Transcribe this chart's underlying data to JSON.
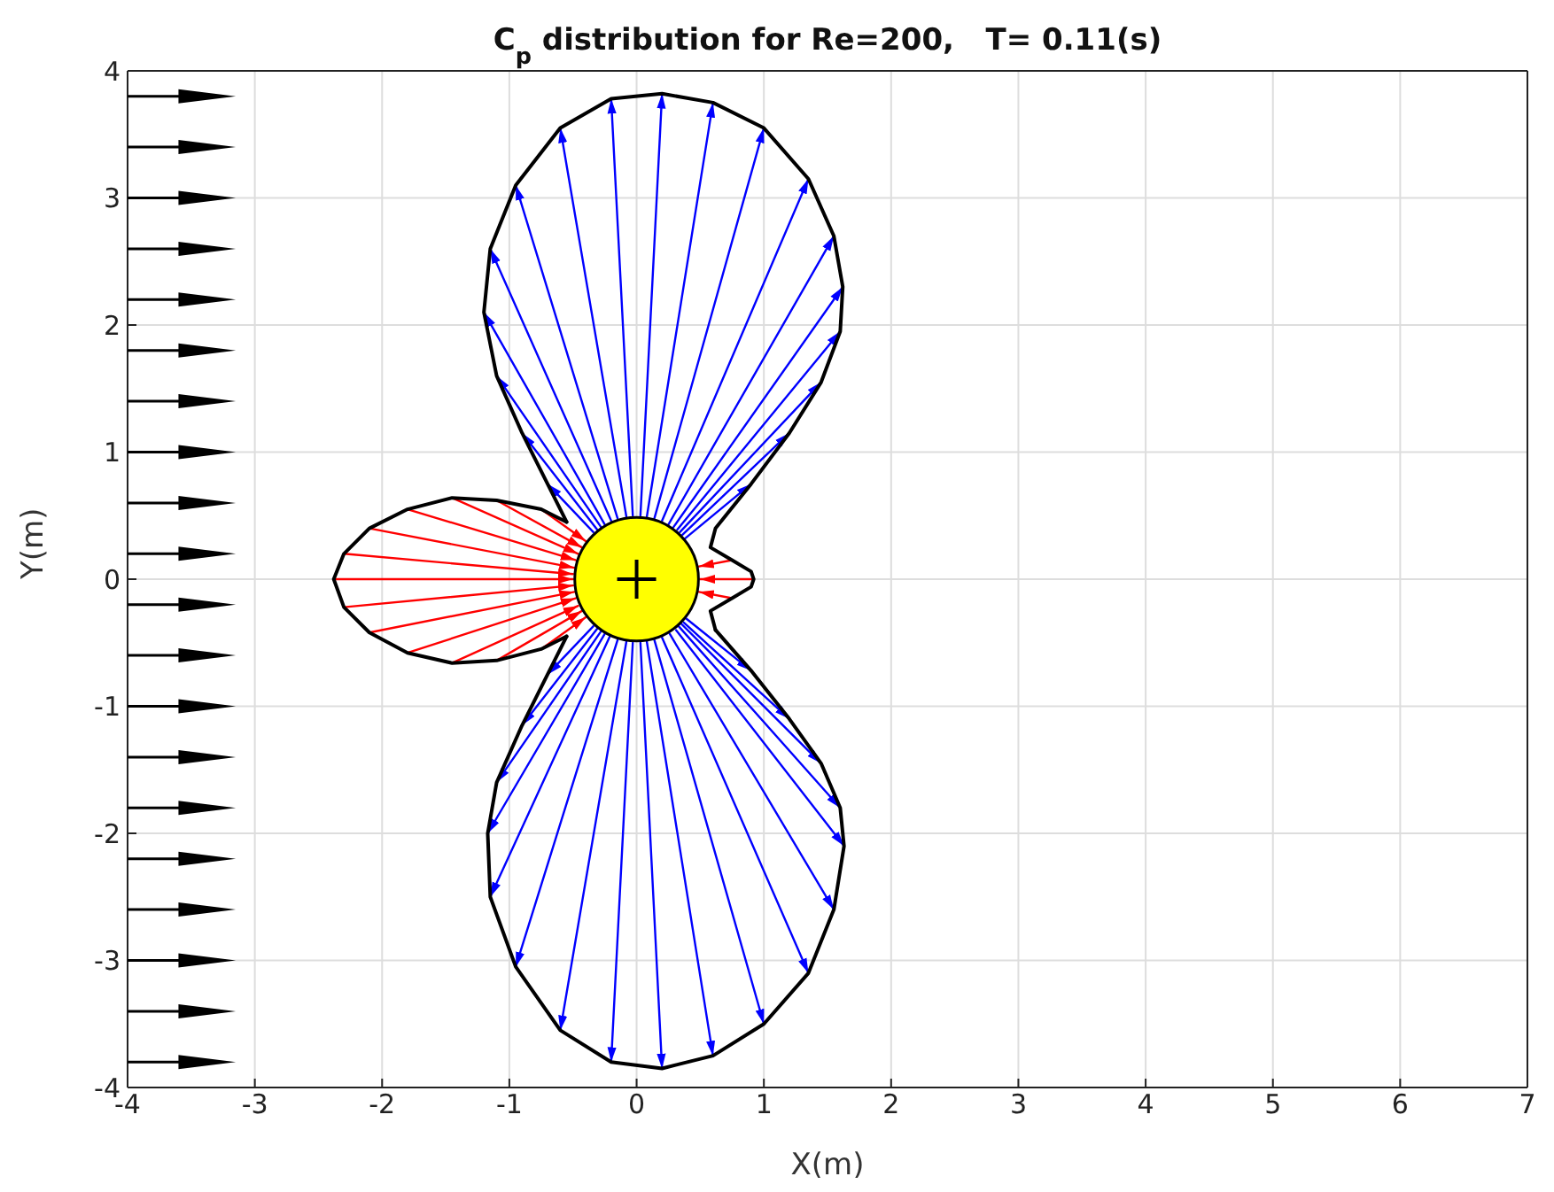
{
  "chart_data": {
    "type": "line",
    "title": "C$_{p}$ distribution for Re=200,   T= 0.11(s)",
    "xlabel": "X(m)",
    "ylabel": "Y(m)",
    "xlim": [
      -4,
      7
    ],
    "xticks": [
      -4,
      -3,
      -2,
      -1,
      0,
      1,
      2,
      3,
      4,
      5,
      6,
      7
    ],
    "ylim": [
      -4,
      4
    ],
    "yticks": [
      -4,
      -3,
      -2,
      -1,
      0,
      1,
      2,
      3,
      4
    ],
    "grid": true,
    "line_style": "solid",
    "marker": "none",
    "series": [
      {
        "color": "#0000ff",
        "x": [
          0.38,
          0.9
        ],
        "values": [
          0.32,
          0.75
        ]
      },
      {
        "color": "#0000ff",
        "x": [
          0.36,
          1.2
        ],
        "values": [
          0.35,
          1.15
        ]
      },
      {
        "color": "#0000ff",
        "x": [
          0.34,
          1.45
        ],
        "values": [
          0.37,
          1.55
        ]
      },
      {
        "color": "#0000ff",
        "x": [
          0.32,
          1.6
        ],
        "values": [
          0.39,
          1.95
        ]
      },
      {
        "color": "#0000ff",
        "x": [
          0.29,
          1.62
        ],
        "values": [
          0.41,
          2.3
        ]
      },
      {
        "color": "#0000ff",
        "x": [
          0.25,
          1.55
        ],
        "values": [
          0.43,
          2.7
        ]
      },
      {
        "color": "#0000ff",
        "x": [
          0.2,
          1.35
        ],
        "values": [
          0.46,
          3.15
        ]
      },
      {
        "color": "#0000ff",
        "x": [
          0.14,
          1.0
        ],
        "values": [
          0.48,
          3.55
        ]
      },
      {
        "color": "#0000ff",
        "x": [
          0.08,
          0.6
        ],
        "values": [
          0.49,
          3.75
        ]
      },
      {
        "color": "#0000ff",
        "x": [
          0.03,
          0.2
        ],
        "values": [
          0.5,
          3.82
        ]
      },
      {
        "color": "#0000ff",
        "x": [
          -0.03,
          -0.2
        ],
        "values": [
          0.5,
          3.78
        ]
      },
      {
        "color": "#0000ff",
        "x": [
          -0.08,
          -0.6
        ],
        "values": [
          0.49,
          3.55
        ]
      },
      {
        "color": "#0000ff",
        "x": [
          -0.15,
          -0.95
        ],
        "values": [
          0.48,
          3.1
        ]
      },
      {
        "color": "#0000ff",
        "x": [
          -0.2,
          -1.15
        ],
        "values": [
          0.46,
          2.6
        ]
      },
      {
        "color": "#0000ff",
        "x": [
          -0.25,
          -1.2
        ],
        "values": [
          0.43,
          2.1
        ]
      },
      {
        "color": "#0000ff",
        "x": [
          -0.28,
          -1.1
        ],
        "values": [
          0.41,
          1.6
        ]
      },
      {
        "color": "#0000ff",
        "x": [
          -0.31,
          -0.9
        ],
        "values": [
          0.39,
          1.15
        ]
      },
      {
        "color": "#0000ff",
        "x": [
          -0.34,
          -0.7
        ],
        "values": [
          0.37,
          0.75
        ]
      },
      {
        "color": "#0000ff",
        "x": [
          -0.34,
          -0.7
        ],
        "values": [
          -0.37,
          -0.75
        ]
      },
      {
        "color": "#0000ff",
        "x": [
          -0.31,
          -0.9
        ],
        "values": [
          -0.39,
          -1.15
        ]
      },
      {
        "color": "#0000ff",
        "x": [
          -0.28,
          -1.1
        ],
        "values": [
          -0.41,
          -1.6
        ]
      },
      {
        "color": "#0000ff",
        "x": [
          -0.25,
          -1.17
        ],
        "values": [
          -0.43,
          -2.0
        ]
      },
      {
        "color": "#0000ff",
        "x": [
          -0.21,
          -1.15
        ],
        "values": [
          -0.45,
          -2.5
        ]
      },
      {
        "color": "#0000ff",
        "x": [
          -0.15,
          -0.95
        ],
        "values": [
          -0.48,
          -3.05
        ]
      },
      {
        "color": "#0000ff",
        "x": [
          -0.08,
          -0.6
        ],
        "values": [
          -0.49,
          -3.55
        ]
      },
      {
        "color": "#0000ff",
        "x": [
          -0.03,
          -0.2
        ],
        "values": [
          -0.5,
          -3.8
        ]
      },
      {
        "color": "#0000ff",
        "x": [
          0.03,
          0.2
        ],
        "values": [
          -0.5,
          -3.85
        ]
      },
      {
        "color": "#0000ff",
        "x": [
          0.08,
          0.6
        ],
        "values": [
          -0.49,
          -3.75
        ]
      },
      {
        "color": "#0000ff",
        "x": [
          0.14,
          1.0
        ],
        "values": [
          -0.48,
          -3.5
        ]
      },
      {
        "color": "#0000ff",
        "x": [
          0.2,
          1.35
        ],
        "values": [
          -0.46,
          -3.1
        ]
      },
      {
        "color": "#0000ff",
        "x": [
          0.26,
          1.55
        ],
        "values": [
          -0.43,
          -2.6
        ]
      },
      {
        "color": "#0000ff",
        "x": [
          0.31,
          1.63
        ],
        "values": [
          -0.4,
          -2.1
        ]
      },
      {
        "color": "#0000ff",
        "x": [
          0.33,
          1.6
        ],
        "values": [
          -0.37,
          -1.8
        ]
      },
      {
        "color": "#0000ff",
        "x": [
          0.35,
          1.45
        ],
        "values": [
          -0.35,
          -1.45
        ]
      },
      {
        "color": "#0000ff",
        "x": [
          0.37,
          1.2
        ],
        "values": [
          -0.34,
          -1.1
        ]
      },
      {
        "color": "#0000ff",
        "x": [
          0.39,
          0.9
        ],
        "values": [
          -0.31,
          -0.72
        ]
      },
      {
        "color": "#ff0000",
        "x": [
          -0.75,
          -0.4
        ],
        "values": [
          0.55,
          0.3
        ]
      },
      {
        "color": "#ff0000",
        "x": [
          -1.1,
          -0.43
        ],
        "values": [
          0.62,
          0.25
        ]
      },
      {
        "color": "#ff0000",
        "x": [
          -1.45,
          -0.46
        ],
        "values": [
          0.64,
          0.2
        ]
      },
      {
        "color": "#ff0000",
        "x": [
          -1.8,
          -0.48
        ],
        "values": [
          0.55,
          0.15
        ]
      },
      {
        "color": "#ff0000",
        "x": [
          -2.1,
          -0.49
        ],
        "values": [
          0.4,
          0.09
        ]
      },
      {
        "color": "#ff0000",
        "x": [
          -2.3,
          -0.5
        ],
        "values": [
          0.2,
          0.04
        ]
      },
      {
        "color": "#ff0000",
        "x": [
          -2.38,
          -0.5
        ],
        "values": [
          0,
          0
        ]
      },
      {
        "color": "#ff0000",
        "x": [
          -2.3,
          -0.5
        ],
        "values": [
          -0.22,
          -0.05
        ]
      },
      {
        "color": "#ff0000",
        "x": [
          -2.1,
          -0.49
        ],
        "values": [
          -0.42,
          -0.1
        ]
      },
      {
        "color": "#ff0000",
        "x": [
          -1.8,
          -0.48
        ],
        "values": [
          -0.58,
          -0.15
        ]
      },
      {
        "color": "#ff0000",
        "x": [
          -1.45,
          -0.46
        ],
        "values": [
          -0.66,
          -0.21
        ]
      },
      {
        "color": "#ff0000",
        "x": [
          -1.1,
          -0.43
        ],
        "values": [
          -0.64,
          -0.25
        ]
      },
      {
        "color": "#ff0000",
        "x": [
          -0.75,
          -0.4
        ],
        "values": [
          -0.55,
          -0.3
        ]
      },
      {
        "color": "#ff0000",
        "x": [
          0.75,
          0.49
        ],
        "values": [
          0.15,
          0.1
        ]
      },
      {
        "color": "#ff0000",
        "x": [
          0.92,
          0.5
        ],
        "values": [
          0,
          0
        ]
      },
      {
        "color": "#ff0000",
        "x": [
          0.75,
          0.49
        ],
        "values": [
          -0.15,
          -0.1
        ]
      },
      {
        "color": "#000000",
        "x": [
          0.62,
          0.58,
          0.75,
          0.9,
          0.92,
          0.9,
          0.75,
          0.58,
          0.62,
          0.9,
          1.2,
          1.45,
          1.6,
          1.62,
          1.55,
          1.35,
          1.0,
          0.6,
          0.2,
          -0.2,
          -0.6,
          -0.95,
          -1.15,
          -1.2,
          -1.1,
          -0.9,
          -0.7,
          -0.55
        ],
        "values": [
          -0.4,
          -0.25,
          -0.15,
          -0.06,
          0,
          0.06,
          0.15,
          0.25,
          0.4,
          0.75,
          1.15,
          1.55,
          1.95,
          2.3,
          2.7,
          3.15,
          3.55,
          3.75,
          3.82,
          3.78,
          3.55,
          3.1,
          2.6,
          2.1,
          1.6,
          1.15,
          0.75,
          0.45
        ]
      },
      {
        "color": "#000000",
        "x": [
          -0.55,
          -0.75,
          -1.1,
          -1.45,
          -1.8,
          -2.1,
          -2.3,
          -2.38,
          -2.3,
          -2.1,
          -1.8,
          -1.45,
          -1.1,
          -0.75,
          -0.55
        ],
        "values": [
          0.45,
          0.55,
          0.62,
          0.64,
          0.55,
          0.4,
          0.2,
          0,
          -0.22,
          -0.42,
          -0.58,
          -0.66,
          -0.64,
          -0.55,
          -0.45
        ]
      },
      {
        "color": "#000000",
        "x": [
          -0.55,
          -0.7,
          -0.9,
          -1.1,
          -1.17,
          -1.15,
          -0.95,
          -0.6,
          -0.2,
          0.2,
          0.6,
          1.0,
          1.35,
          1.55,
          1.63,
          1.6,
          1.45,
          1.2,
          0.9,
          0.62
        ],
        "values": [
          -0.45,
          -0.75,
          -1.15,
          -1.6,
          -2.0,
          -2.5,
          -3.05,
          -3.55,
          -3.8,
          -3.85,
          -3.75,
          -3.5,
          -3.1,
          -2.6,
          -2.1,
          -1.8,
          -1.45,
          -1.1,
          -0.72,
          -0.4
        ]
      }
    ]
  }
}
